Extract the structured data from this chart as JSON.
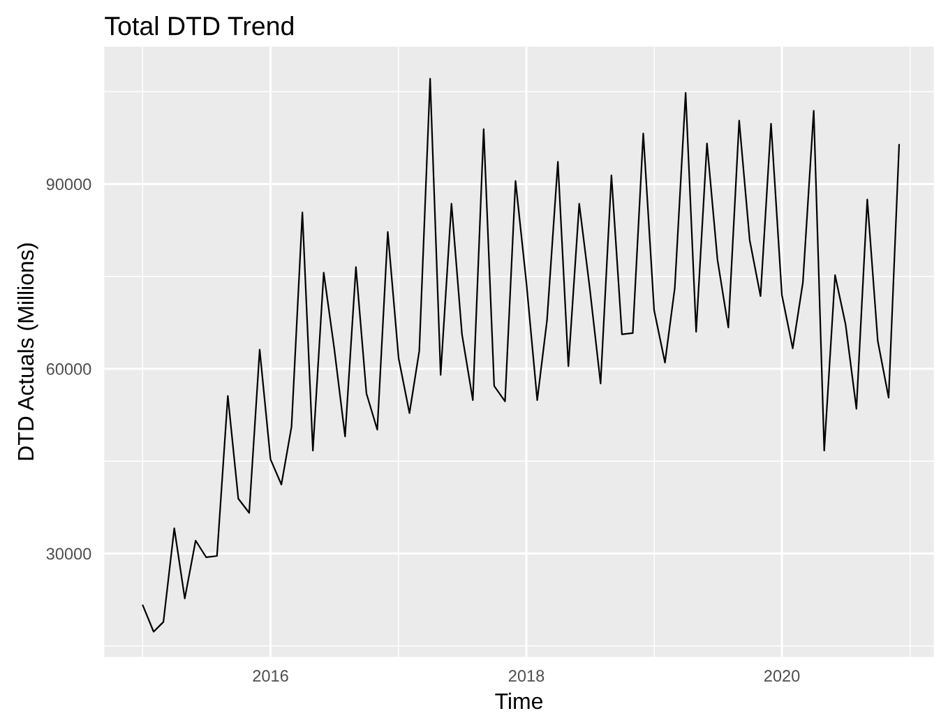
{
  "chart_data": {
    "type": "line",
    "title": "Total DTD Trend",
    "xlabel": "Time",
    "ylabel": "DTD Actuals (Millions)",
    "x": [
      "2015-01",
      "2015-02",
      "2015-03",
      "2015-04",
      "2015-05",
      "2015-06",
      "2015-07",
      "2015-08",
      "2015-09",
      "2015-10",
      "2015-11",
      "2015-12",
      "2016-01",
      "2016-02",
      "2016-03",
      "2016-04",
      "2016-05",
      "2016-06",
      "2016-07",
      "2016-08",
      "2016-09",
      "2016-10",
      "2016-11",
      "2016-12",
      "2017-01",
      "2017-02",
      "2017-03",
      "2017-04",
      "2017-05",
      "2017-06",
      "2017-07",
      "2017-08",
      "2017-09",
      "2017-10",
      "2017-11",
      "2017-12",
      "2018-01",
      "2018-02",
      "2018-03",
      "2018-04",
      "2018-05",
      "2018-06",
      "2018-07",
      "2018-08",
      "2018-09",
      "2018-10",
      "2018-11",
      "2018-12",
      "2019-01",
      "2019-02",
      "2019-03",
      "2019-04",
      "2019-05",
      "2019-06",
      "2019-07",
      "2019-08",
      "2019-09",
      "2019-10",
      "2019-11",
      "2019-12",
      "2020-01",
      "2020-02",
      "2020-03",
      "2020-04",
      "2020-05",
      "2020-06",
      "2020-07",
      "2020-08",
      "2020-09",
      "2020-10",
      "2020-11",
      "2020-12"
    ],
    "series": [
      {
        "color": "#000000",
        "values": [
          21600,
          17300,
          18900,
          34100,
          22700,
          32100,
          29400,
          29600,
          55600,
          38900,
          36600,
          63100,
          45300,
          41200,
          50600,
          85400,
          46700,
          75600,
          63300,
          49000,
          76500,
          56000,
          50100,
          82200,
          61700,
          52800,
          62900,
          107100,
          59000,
          86800,
          65600,
          54900,
          98900,
          57200,
          54700,
          90500,
          74000,
          54900,
          67900,
          93600,
          60400,
          86800,
          73100,
          57600,
          91400,
          65600,
          65800,
          98200,
          69500,
          61000,
          73100,
          104800,
          66000,
          96600,
          77700,
          66700,
          100300,
          80900,
          71800,
          99800,
          72000,
          63300,
          74000,
          101900,
          46700,
          75200,
          67200,
          53500,
          87500,
          64500,
          55300,
          96400
        ]
      }
    ],
    "xlim": [
      "2014-09-13",
      "2021-03-10"
    ],
    "xticks": [
      {
        "value": "2016",
        "label": "2016"
      },
      {
        "value": "2018",
        "label": "2018"
      },
      {
        "value": "2020",
        "label": "2020"
      }
    ],
    "ylim": [
      13200,
      112300
    ],
    "yticks": [
      30000,
      60000,
      90000
    ],
    "grid": true,
    "legend": false,
    "line_style": "solid",
    "marker": "none"
  }
}
